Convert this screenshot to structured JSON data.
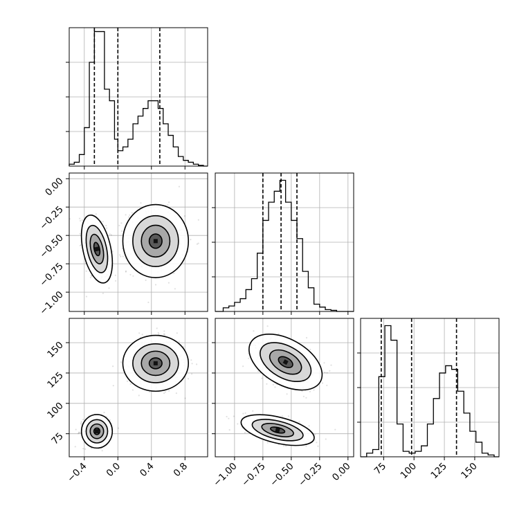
{
  "chart_data": {
    "type": "corner",
    "parameters": [
      "",
      "",
      ""
    ],
    "quantiles": [
      0.16,
      0.5,
      0.84
    ],
    "grid": true,
    "ranges": [
      [
        -0.58,
        1.07
      ],
      [
        -1.17,
        0.05
      ],
      [
        56,
        170
      ]
    ],
    "ticks": [
      {
        "values": [
          -0.4,
          0.0,
          0.4,
          0.8
        ],
        "labels": [
          "−0.4",
          "0.0",
          "0.4",
          "0.8"
        ]
      },
      {
        "values": [
          -1.0,
          -0.75,
          -0.5,
          -0.25,
          0.0
        ],
        "labels": [
          "−1.00",
          "−0.75",
          "−0.50",
          "−0.25",
          "0.00"
        ]
      },
      {
        "values": [
          75,
          100,
          125,
          150
        ],
        "labels": [
          "75",
          "100",
          "125",
          "150"
        ]
      }
    ],
    "marginals": [
      {
        "param": 0,
        "quantile_values": [
          -0.28,
          0.0,
          0.5
        ],
        "bin_edges": [
          -0.58,
          -0.52,
          -0.46,
          -0.4,
          -0.34,
          -0.28,
          -0.22,
          -0.16,
          -0.1,
          -0.04,
          0.0,
          0.06,
          0.12,
          0.18,
          0.24,
          0.3,
          0.36,
          0.42,
          0.48,
          0.54,
          0.6,
          0.66,
          0.72,
          0.78,
          0.84,
          0.9,
          0.96,
          1.02,
          1.07
        ],
        "counts": [
          0.5,
          1,
          3,
          10,
          27,
          35,
          35,
          20,
          17,
          7,
          4,
          5,
          7,
          11,
          13,
          15,
          17,
          17,
          15,
          11,
          8,
          5,
          2.5,
          1.5,
          1,
          0.5,
          0.2,
          0
        ],
        "ymax": 36
      },
      {
        "param": 1,
        "quantile_values": [
          -0.75,
          -0.59,
          -0.45
        ],
        "bin_edges": [
          -1.17,
          -1.1,
          -1.05,
          -1.0,
          -0.95,
          -0.9,
          -0.85,
          -0.8,
          -0.75,
          -0.7,
          -0.65,
          -0.6,
          -0.55,
          -0.5,
          -0.45,
          -0.4,
          -0.35,
          -0.3,
          -0.25,
          -0.2,
          -0.15,
          -0.1,
          0.05
        ],
        "counts": [
          0,
          1,
          1.5,
          2.5,
          3.5,
          6,
          9,
          16,
          25,
          30,
          33,
          36,
          30,
          25,
          20,
          11,
          6.5,
          2,
          1.2,
          0.5,
          0.3,
          0
        ],
        "ymax": 38
      },
      {
        "param": 2,
        "quantile_values": [
          73,
          98,
          135
        ],
        "bin_edges": [
          56,
          61,
          66,
          71,
          76,
          81,
          86,
          91,
          96,
          101,
          106,
          111,
          116,
          121,
          126,
          131,
          136,
          141,
          146,
          151,
          156,
          161,
          166,
          170
        ],
        "counts": [
          0,
          1,
          2,
          22,
          36,
          32,
          9,
          1.5,
          1,
          1.5,
          3,
          9,
          16,
          23,
          25,
          24,
          18,
          12,
          7,
          4,
          1,
          0.5,
          0
        ],
        "ymax": 38
      }
    ],
    "joints": [
      {
        "x": 0,
        "y": 1,
        "modes": [
          {
            "cx": -0.25,
            "cy": -0.62,
            "sx": 0.08,
            "sy": 0.13,
            "rho": -0.4,
            "weight": 0.5
          },
          {
            "cx": 0.45,
            "cy": -0.55,
            "sx": 0.17,
            "sy": 0.14,
            "rho": 0.0,
            "weight": 0.5
          }
        ]
      },
      {
        "x": 0,
        "y": 2,
        "modes": [
          {
            "cx": -0.25,
            "cy": 77,
            "sx": 0.08,
            "sy": 6,
            "rho": 0.0,
            "weight": 0.45
          },
          {
            "cx": 0.45,
            "cy": 133,
            "sx": 0.17,
            "sy": 10,
            "rho": 0.0,
            "weight": 0.55
          }
        ]
      },
      {
        "x": 1,
        "y": 2,
        "modes": [
          {
            "cx": -0.55,
            "cy": 134,
            "sx": 0.14,
            "sy": 10,
            "rho": -0.45,
            "weight": 0.55
          },
          {
            "cx": -0.62,
            "cy": 78,
            "sx": 0.14,
            "sy": 5.5,
            "rho": -0.5,
            "weight": 0.45
          }
        ]
      }
    ]
  }
}
